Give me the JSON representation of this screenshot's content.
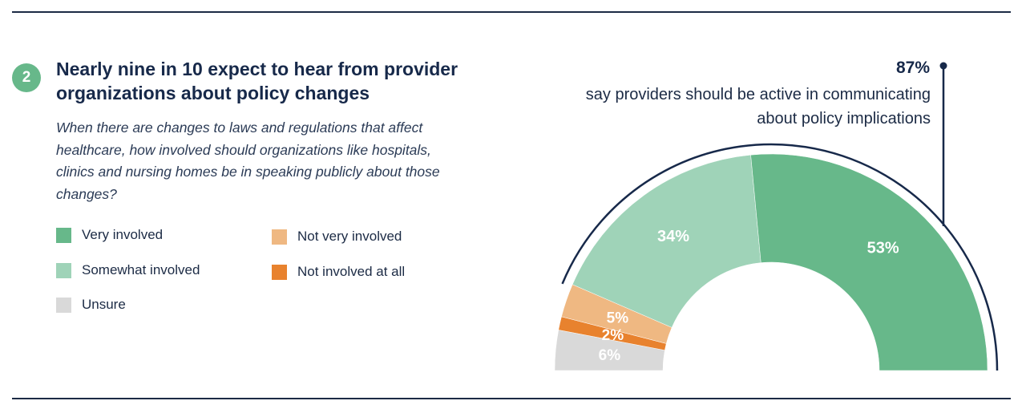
{
  "badge": "2",
  "headline": "Nearly nine in 10 expect to hear from provider organizations about policy changes",
  "question": "When there are changes to laws and regulations that affect healthcare, how involved should organizations like hospitals, clinics and nursing homes be in speaking publicly about those changes?",
  "legend": [
    {
      "label": "Very involved",
      "color": "#67b88a"
    },
    {
      "label": "Somewhat involved",
      "color": "#9fd3b8"
    },
    {
      "label": "Unsure",
      "color": "#d9d9d9"
    },
    {
      "label": "Not very involved",
      "color": "#efb882"
    },
    {
      "label": "Not involved at all",
      "color": "#e8822e"
    }
  ],
  "callout": {
    "value": "87%",
    "text": "say providers should be active in communicating about policy implications"
  },
  "chart_data": {
    "type": "pie",
    "subtype": "semicircle-donut",
    "order": "left-to-right",
    "slices": [
      {
        "name": "Unsure",
        "value": 6,
        "label": "6%",
        "color": "#d9d9d9"
      },
      {
        "name": "Not involved at all",
        "value": 2,
        "label": "2%",
        "color": "#e8822e"
      },
      {
        "name": "Not very involved",
        "value": 5,
        "label": "5%",
        "color": "#efb882"
      },
      {
        "name": "Somewhat involved",
        "value": 34,
        "label": "34%",
        "color": "#9fd3b8"
      },
      {
        "name": "Very involved",
        "value": 53,
        "label": "53%",
        "color": "#67b88a"
      }
    ],
    "highlight": {
      "value": "87%",
      "covers": [
        "Somewhat involved",
        "Very involved"
      ]
    }
  }
}
